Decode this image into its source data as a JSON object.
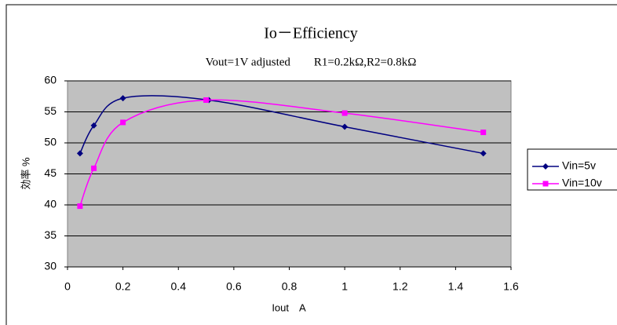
{
  "chart_data": {
    "type": "line",
    "title": "Io－Efficiency",
    "subtitle": "Vout=1V adjusted　　R1=0.2kΩ,R2=0.8kΩ",
    "x_label": "Iout　A",
    "y_label": "効率 %",
    "series": [
      {
        "name": "Vin=5v",
        "color": "#000080",
        "marker": "diamond",
        "x": [
          0.045,
          0.095,
          0.2,
          0.51,
          1.0,
          1.5
        ],
        "values": [
          48.3,
          52.8,
          57.2,
          56.9,
          52.6,
          48.3
        ]
      },
      {
        "name": "Vin=10v",
        "color": "#ff00ff",
        "marker": "square",
        "x": [
          0.045,
          0.095,
          0.2,
          0.5,
          1.0,
          1.5
        ],
        "values": [
          39.8,
          45.9,
          53.3,
          56.9,
          54.8,
          51.7
        ]
      }
    ],
    "xlim": [
      0,
      1.6
    ],
    "xticks": [
      0,
      0.2,
      0.4,
      0.6,
      0.8,
      1,
      1.2,
      1.4,
      1.6
    ],
    "ylim": [
      30,
      60
    ],
    "yticks": [
      30,
      35,
      40,
      45,
      50,
      55,
      60
    ],
    "grid": true,
    "legend": "right"
  }
}
